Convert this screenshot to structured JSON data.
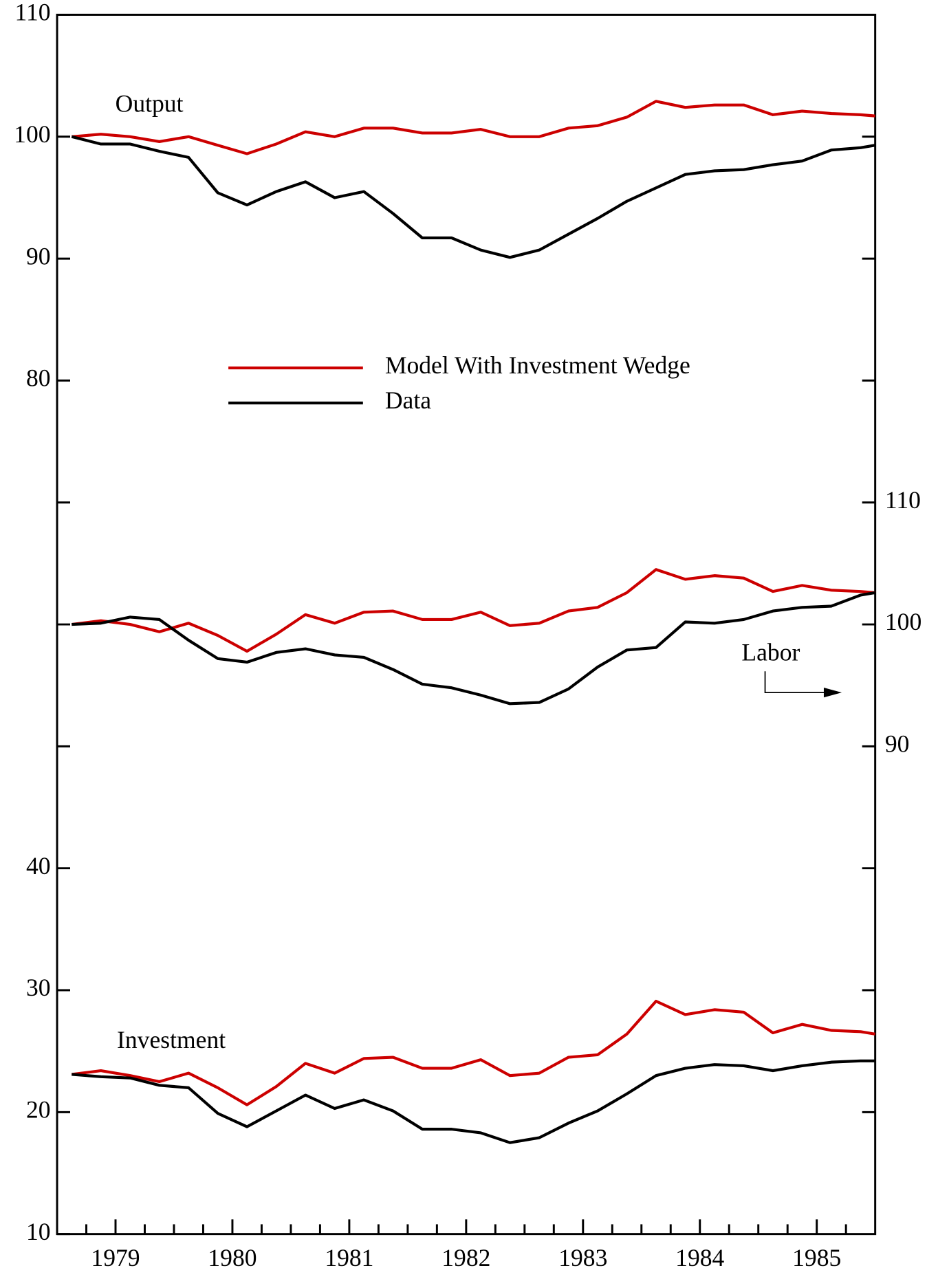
{
  "chart_data": {
    "type": "line",
    "xlim": [
      1978.5,
      1985.5
    ],
    "xticks": [
      1979,
      1980,
      1981,
      1982,
      1983,
      1984,
      1985
    ],
    "xminorticks": [
      1978.75,
      1979.25,
      1979.5,
      1979.75,
      1980.25,
      1980.5,
      1980.75,
      1981.25,
      1981.5,
      1981.75,
      1982.25,
      1982.5,
      1982.75,
      1983.25,
      1983.5,
      1983.75,
      1984.25,
      1984.5,
      1984.75,
      1985.25
    ],
    "x": [
      1978.625,
      1978.875,
      1979.125,
      1979.375,
      1979.625,
      1979.875,
      1980.125,
      1980.375,
      1980.625,
      1980.875,
      1981.125,
      1981.375,
      1981.625,
      1981.875,
      1982.125,
      1982.375,
      1982.625,
      1982.875,
      1983.125,
      1983.375,
      1983.625,
      1983.875,
      1984.125,
      1984.375,
      1984.625,
      1984.875,
      1985.125,
      1985.375,
      1985.5
    ],
    "ylim": [
      10,
      110
    ],
    "yticks": [
      10,
      20,
      30,
      40,
      80,
      90,
      100,
      110
    ],
    "yminorticks": [
      50,
      60,
      70
    ],
    "y2lim": [
      50,
      150
    ],
    "y2ticks": [
      90,
      100,
      110
    ],
    "y2minorticks": [
      60,
      70,
      80,
      120,
      130,
      140
    ],
    "legend": "center",
    "series": [
      {
        "name": "Model With Investment Wedge",
        "color": "#cc0000"
      },
      {
        "name": "Data",
        "color": "#000000"
      }
    ],
    "panels": [
      {
        "label": "Output",
        "axis": "y",
        "series": [
          {
            "values": [
              100.0,
              100.2,
              100.0,
              99.6,
              100.0,
              99.3,
              98.6,
              99.4,
              100.4,
              100.0,
              100.7,
              100.7,
              100.3,
              100.3,
              100.6,
              100.0,
              100.0,
              100.7,
              100.9,
              101.6,
              102.9,
              102.4,
              102.6,
              102.6,
              101.8,
              102.1,
              101.9,
              101.8,
              101.7
            ]
          },
          {
            "values": [
              100.0,
              99.4,
              99.4,
              98.8,
              98.3,
              95.4,
              94.4,
              95.5,
              96.3,
              95.0,
              95.5,
              93.7,
              91.7,
              91.7,
              90.7,
              90.1,
              90.7,
              92.0,
              93.3,
              94.7,
              95.8,
              96.9,
              97.2,
              97.3,
              97.7,
              98.0,
              98.9,
              99.1,
              99.3
            ]
          }
        ]
      },
      {
        "label": "Labor",
        "axis": "y2",
        "series": [
          {
            "values": [
              100.0,
              100.3,
              100.0,
              99.4,
              100.1,
              99.1,
              97.8,
              99.2,
              100.8,
              100.1,
              101.0,
              101.1,
              100.4,
              100.4,
              101.0,
              99.9,
              100.1,
              101.1,
              101.4,
              102.6,
              104.5,
              103.7,
              104.0,
              103.8,
              102.7,
              103.2,
              102.8,
              102.7,
              102.6
            ]
          },
          {
            "values": [
              100.0,
              100.1,
              100.6,
              100.4,
              98.7,
              97.2,
              96.9,
              97.7,
              98.0,
              97.5,
              97.3,
              96.3,
              95.1,
              94.8,
              94.2,
              93.5,
              93.6,
              94.7,
              96.5,
              97.9,
              98.1,
              100.2,
              100.1,
              100.4,
              101.1,
              101.4,
              101.5,
              102.4,
              102.6
            ]
          }
        ]
      },
      {
        "label": "Investment",
        "axis": "y",
        "series": [
          {
            "values": [
              23.1,
              23.4,
              23.0,
              22.5,
              23.2,
              22.0,
              20.6,
              22.1,
              24.0,
              23.2,
              24.4,
              24.5,
              23.6,
              23.6,
              24.3,
              23.0,
              23.2,
              24.5,
              24.7,
              26.4,
              29.1,
              28.0,
              28.4,
              28.2,
              26.5,
              27.2,
              26.7,
              26.6,
              26.4
            ]
          },
          {
            "values": [
              23.1,
              22.9,
              22.8,
              22.2,
              22.0,
              19.9,
              18.8,
              20.1,
              21.4,
              20.3,
              21.0,
              20.1,
              18.6,
              18.6,
              18.3,
              17.5,
              17.9,
              19.1,
              20.1,
              21.5,
              23.0,
              23.6,
              23.9,
              23.8,
              23.4,
              23.8,
              24.1,
              24.2,
              24.2
            ]
          }
        ]
      }
    ]
  }
}
